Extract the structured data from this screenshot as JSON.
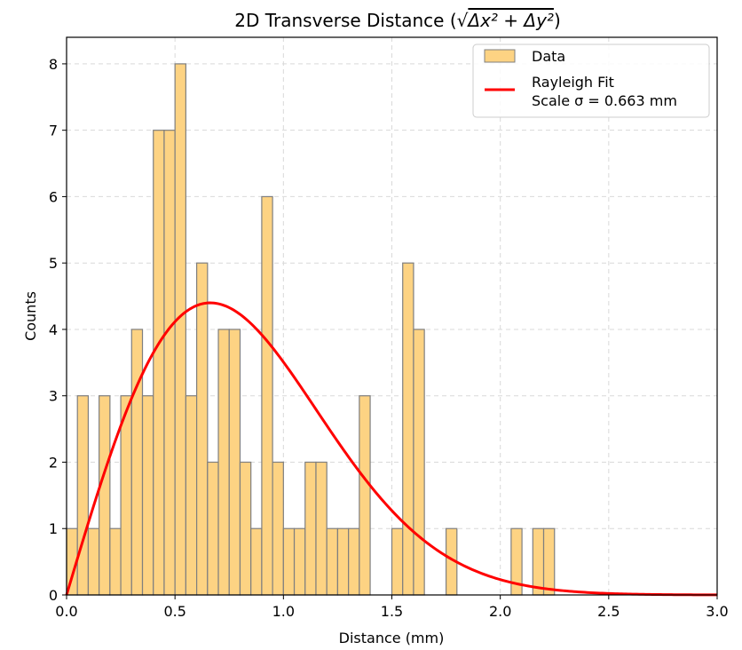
{
  "chart_data": {
    "type": "bar",
    "title": "2D Transverse Distance (√Δx² + Δy²)",
    "title_parts": {
      "prefix": "2D Transverse Distance (",
      "root": "√",
      "expr": "Δx² + Δy²",
      "suffix": ")"
    },
    "xlabel": "Distance (mm)",
    "ylabel": "Counts",
    "xlim": [
      0.0,
      3.0
    ],
    "ylim": [
      0,
      8.4
    ],
    "grid": true,
    "legend_position": "top-right",
    "x_ticks": [
      0.0,
      0.5,
      1.0,
      1.5,
      2.0,
      2.5,
      3.0
    ],
    "x_tick_labels": [
      "0.0",
      "0.5",
      "1.0",
      "1.5",
      "2.0",
      "2.5",
      "3.0"
    ],
    "y_ticks": [
      0,
      1,
      2,
      3,
      4,
      5,
      6,
      7,
      8
    ],
    "y_tick_labels": [
      "0",
      "1",
      "2",
      "3",
      "4",
      "5",
      "6",
      "7",
      "8"
    ],
    "bin_width": 0.05,
    "histogram": {
      "name": "Data",
      "bin_starts": [
        0.0,
        0.05,
        0.1,
        0.15,
        0.2,
        0.25,
        0.3,
        0.35,
        0.4,
        0.45,
        0.5,
        0.55,
        0.6,
        0.65,
        0.7,
        0.75,
        0.8,
        0.85,
        0.9,
        0.95,
        1.0,
        1.05,
        1.1,
        1.15,
        1.2,
        1.25,
        1.3,
        1.35,
        1.4,
        1.45,
        1.5,
        1.55,
        1.6,
        1.65,
        1.7,
        1.75,
        1.8,
        1.85,
        1.9,
        1.95,
        2.0,
        2.05,
        2.1,
        2.15,
        2.2,
        2.25
      ],
      "counts": [
        1,
        3,
        1,
        3,
        1,
        3,
        4,
        3,
        7,
        7,
        8,
        3,
        5,
        2,
        4,
        4,
        2,
        1,
        6,
        2,
        1,
        1,
        2,
        2,
        1,
        1,
        1,
        3,
        0,
        0,
        1,
        5,
        4,
        0,
        0,
        1,
        0,
        0,
        0,
        0,
        0,
        1,
        0,
        1,
        1,
        0
      ]
    },
    "fit": {
      "name": "Rayleigh Fit",
      "label_line2": "Scale σ = 0.663 mm",
      "distribution": "rayleigh",
      "sigma": 0.663,
      "amplitude": 4.4
    },
    "colors": {
      "bar_fill": "#fdd383",
      "bar_edge": "#7f7f7f",
      "fit_line": "#ff0000",
      "grid": "#d9d9d9"
    }
  }
}
